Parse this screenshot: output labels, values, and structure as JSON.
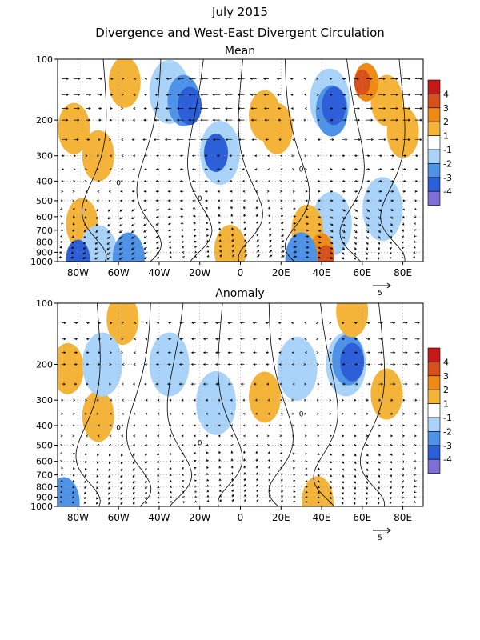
{
  "title": "July 2015",
  "subtitle": "Divergence and West-East Divergent Circulation",
  "legend_colors": {
    "-4": "#7f6fd6",
    "-3": "#2c5fd8",
    "-2": "#4f93e8",
    "-1": "#a9d3f8",
    "1": "#ffffff",
    "2": "#f4b43a",
    "3": "#ef8a14",
    "4": "#d8501a",
    "5": "#c8191a"
  },
  "chart_data": [
    {
      "type": "heatmap",
      "panel_title": "Mean",
      "x_ticks": [
        "80W",
        "60W",
        "40W",
        "20W",
        "0",
        "20E",
        "40E",
        "60E",
        "80E"
      ],
      "x_tick_values": [
        -80,
        -60,
        -40,
        -20,
        0,
        20,
        40,
        60,
        80
      ],
      "xlim": [
        -90,
        90
      ],
      "y_ticks": [
        "100",
        "200",
        "300",
        "400",
        "500",
        "600",
        "700",
        "800",
        "900",
        "1000"
      ],
      "y_tick_values": [
        100,
        200,
        300,
        400,
        500,
        600,
        700,
        800,
        900,
        1000
      ],
      "ylim": [
        1000,
        100
      ],
      "y_scale": "log",
      "legend_labels": [
        "4",
        "3",
        "2",
        "1",
        "-1",
        "-2",
        "-3",
        "-4"
      ],
      "vector_reference_label": "5",
      "contour_labels": [
        "0",
        "0",
        "0"
      ],
      "blobs": [
        {
          "lon": -57,
          "p": 130,
          "level": 2
        },
        {
          "lon": -82,
          "p": 220,
          "level": 2
        },
        {
          "lon": -70,
          "p": 300,
          "level": 2
        },
        {
          "lon": -78,
          "p": 650,
          "level": 2
        },
        {
          "lon": -35,
          "p": 145,
          "level": -1
        },
        {
          "lon": -28,
          "p": 160,
          "level": -2
        },
        {
          "lon": -25,
          "p": 170,
          "level": -3
        },
        {
          "lon": -10,
          "p": 290,
          "level": -1
        },
        {
          "lon": -12,
          "p": 290,
          "level": -3
        },
        {
          "lon": 12,
          "p": 190,
          "level": 2
        },
        {
          "lon": 18,
          "p": 220,
          "level": 2
        },
        {
          "lon": 44,
          "p": 160,
          "level": -1
        },
        {
          "lon": 45,
          "p": 180,
          "level": -2
        },
        {
          "lon": 46,
          "p": 170,
          "level": -3
        },
        {
          "lon": 72,
          "p": 160,
          "level": 2
        },
        {
          "lon": 62,
          "p": 130,
          "level": 3
        },
        {
          "lon": 60,
          "p": 130,
          "level": 4
        },
        {
          "lon": 80,
          "p": 230,
          "level": 2
        },
        {
          "lon": 70,
          "p": 550,
          "level": -1
        },
        {
          "lon": 45,
          "p": 650,
          "level": -1
        },
        {
          "lon": 33,
          "p": 700,
          "level": 2
        },
        {
          "lon": 40,
          "p": 900,
          "level": 3
        },
        {
          "lon": 42,
          "p": 960,
          "level": 4
        },
        {
          "lon": -5,
          "p": 880,
          "level": 2
        },
        {
          "lon": -70,
          "p": 950,
          "level": -1
        },
        {
          "lon": -55,
          "p": 960,
          "level": -2
        },
        {
          "lon": -80,
          "p": 970,
          "level": -3
        },
        {
          "lon": 30,
          "p": 960,
          "level": -2
        }
      ]
    },
    {
      "type": "heatmap",
      "panel_title": "Anomaly",
      "x_ticks": [
        "80W",
        "60W",
        "40W",
        "20W",
        "0",
        "20E",
        "40E",
        "60E",
        "80E"
      ],
      "x_tick_values": [
        -80,
        -60,
        -40,
        -20,
        0,
        20,
        40,
        60,
        80
      ],
      "xlim": [
        -90,
        90
      ],
      "y_ticks": [
        "100",
        "200",
        "300",
        "400",
        "500",
        "600",
        "700",
        "800",
        "900",
        "1000"
      ],
      "y_tick_values": [
        100,
        200,
        300,
        400,
        500,
        600,
        700,
        800,
        900,
        1000
      ],
      "ylim": [
        1000,
        100
      ],
      "y_scale": "log",
      "legend_labels": [
        "4",
        "3",
        "2",
        "1",
        "-1",
        "-2",
        "-3",
        "-4"
      ],
      "vector_reference_label": "5",
      "contour_labels": [
        "0",
        "0",
        "0"
      ],
      "blobs": [
        {
          "lon": -58,
          "p": 120,
          "level": 2
        },
        {
          "lon": -85,
          "p": 210,
          "level": 2
        },
        {
          "lon": -70,
          "p": 360,
          "level": 2
        },
        {
          "lon": -68,
          "p": 200,
          "level": -1
        },
        {
          "lon": -35,
          "p": 200,
          "level": -1
        },
        {
          "lon": -12,
          "p": 310,
          "level": -1
        },
        {
          "lon": 12,
          "p": 290,
          "level": 2
        },
        {
          "lon": 28,
          "p": 210,
          "level": -1
        },
        {
          "lon": 52,
          "p": 200,
          "level": -1
        },
        {
          "lon": 53,
          "p": 190,
          "level": -2
        },
        {
          "lon": 55,
          "p": 195,
          "level": -3
        },
        {
          "lon": 72,
          "p": 280,
          "level": 2
        },
        {
          "lon": 55,
          "p": 110,
          "level": 2
        },
        {
          "lon": 38,
          "p": 950,
          "level": 2
        },
        {
          "lon": -87,
          "p": 960,
          "level": -2
        }
      ]
    }
  ]
}
